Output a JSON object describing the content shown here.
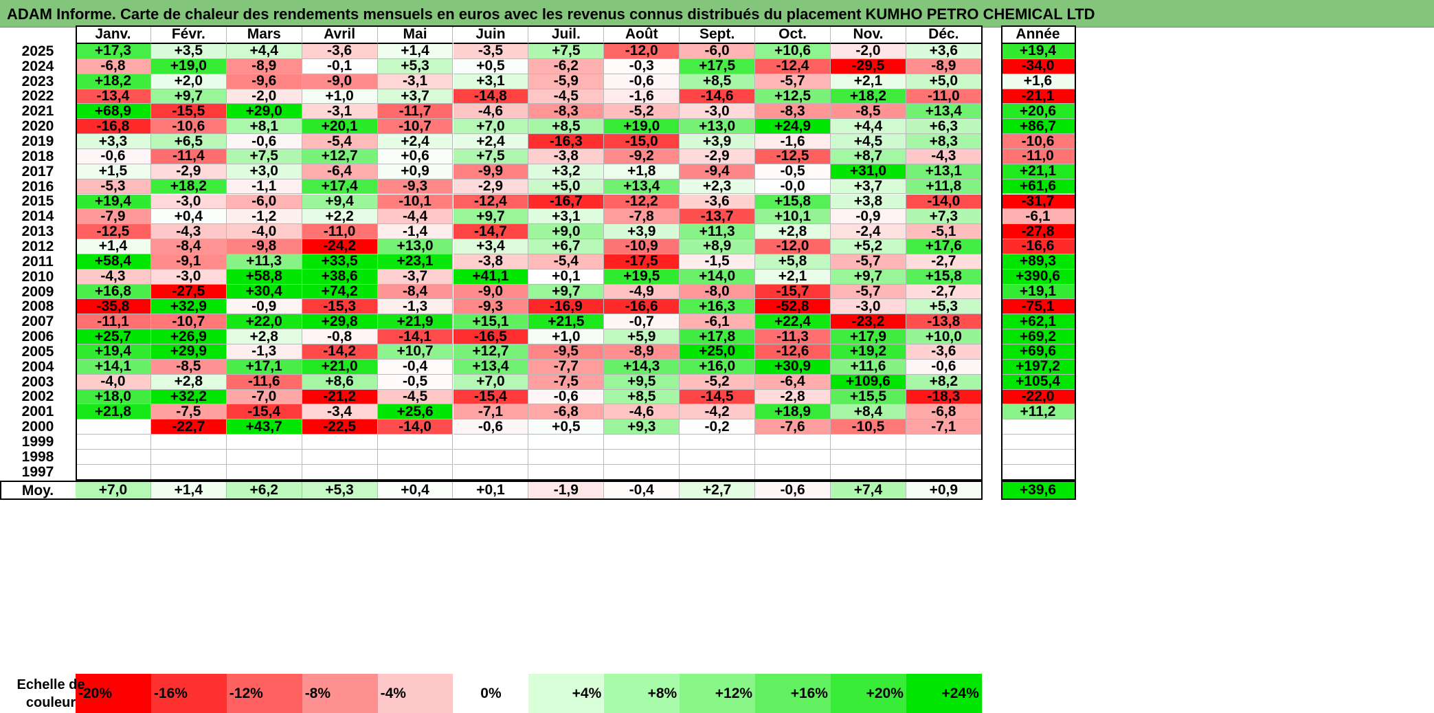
{
  "title": "ADAM Informe. Carte de chaleur des rendements mensuels en euros avec les revenus connus distribués du placement KUMHO PETRO CHEMICAL LTD",
  "chart_data": {
    "type": "heatmap",
    "title": "ADAM Informe. Carte de chaleur des rendements mensuels en euros avec les revenus connus distribués du placement KUMHO PETRO CHEMICAL LTD",
    "columns": [
      "Janv.",
      "Févr.",
      "Mars",
      "Avril",
      "Mai",
      "Juin",
      "Juil.",
      "Août",
      "Sept.",
      "Oct.",
      "Nov.",
      "Déc."
    ],
    "year_column_label": "Année",
    "average_row_label": "Moy.",
    "rows": [
      {
        "year": "2025",
        "values": [
          "+17,3",
          "+3,5",
          "+4,4",
          "-3,6",
          "+1,4",
          "-3,5",
          "+7,5",
          "-12,0",
          "-6,0",
          "+10,6",
          "-2,0",
          "+3,6"
        ],
        "annual": "+19,4"
      },
      {
        "year": "2024",
        "values": [
          "-6,8",
          "+19,0",
          "-8,9",
          "-0,1",
          "+5,3",
          "+0,5",
          "-6,2",
          "-0,3",
          "+17,5",
          "-12,4",
          "-29,5",
          "-8,9"
        ],
        "annual": "-34,0"
      },
      {
        "year": "2023",
        "values": [
          "+18,2",
          "+2,0",
          "-9,6",
          "-9,0",
          "-3,1",
          "+3,1",
          "-5,9",
          "-0,6",
          "+8,5",
          "-5,7",
          "+2,1",
          "+5,0"
        ],
        "annual": "+1,6"
      },
      {
        "year": "2022",
        "values": [
          "-13,4",
          "+9,7",
          "-2,0",
          "+1,0",
          "+3,7",
          "-14,8",
          "-4,5",
          "-1,6",
          "-14,6",
          "+12,5",
          "+18,2",
          "-11,0"
        ],
        "annual": "-21,1"
      },
      {
        "year": "2021",
        "values": [
          "+68,9",
          "-15,5",
          "+29,0",
          "-3,1",
          "-11,7",
          "-4,6",
          "-8,3",
          "-5,2",
          "-3,0",
          "-8,3",
          "-8,5",
          "+13,4"
        ],
        "annual": "+20,6"
      },
      {
        "year": "2020",
        "values": [
          "-16,8",
          "-10,6",
          "+8,1",
          "+20,1",
          "-10,7",
          "+7,0",
          "+8,5",
          "+19,0",
          "+13,0",
          "+24,9",
          "+4,4",
          "+6,3"
        ],
        "annual": "+86,7"
      },
      {
        "year": "2019",
        "values": [
          "+3,3",
          "+6,5",
          "-0,6",
          "-5,4",
          "+2,4",
          "+2,4",
          "-16,3",
          "-15,0",
          "+3,9",
          "-1,6",
          "+4,5",
          "+8,3"
        ],
        "annual": "-10,6"
      },
      {
        "year": "2018",
        "values": [
          "-0,6",
          "-11,4",
          "+7,5",
          "+12,7",
          "+0,6",
          "+7,5",
          "-3,8",
          "-9,2",
          "-2,9",
          "-12,5",
          "+8,7",
          "-4,3"
        ],
        "annual": "-11,0"
      },
      {
        "year": "2017",
        "values": [
          "+1,5",
          "-2,9",
          "+3,0",
          "-6,4",
          "+0,9",
          "-9,9",
          "+3,2",
          "+1,8",
          "-9,4",
          "-0,5",
          "+31,0",
          "+13,1"
        ],
        "annual": "+21,1"
      },
      {
        "year": "2016",
        "values": [
          "-5,3",
          "+18,2",
          "-1,1",
          "+17,4",
          "-9,3",
          "-2,9",
          "+5,0",
          "+13,4",
          "+2,3",
          "-0,0",
          "+3,7",
          "+11,8"
        ],
        "annual": "+61,6"
      },
      {
        "year": "2015",
        "values": [
          "+19,4",
          "-3,0",
          "-6,0",
          "+9,4",
          "-10,1",
          "-12,4",
          "-16,7",
          "-12,2",
          "-3,6",
          "+15,8",
          "+3,8",
          "-14,0"
        ],
        "annual": "-31,7"
      },
      {
        "year": "2014",
        "values": [
          "-7,9",
          "+0,4",
          "-1,2",
          "+2,2",
          "-4,4",
          "+9,7",
          "+3,1",
          "-7,8",
          "-13,7",
          "+10,1",
          "-0,9",
          "+7,3"
        ],
        "annual": "-6,1"
      },
      {
        "year": "2013",
        "values": [
          "-12,5",
          "-4,3",
          "-4,0",
          "-11,0",
          "-1,4",
          "-14,7",
          "+9,0",
          "+3,9",
          "+11,3",
          "+2,8",
          "-2,4",
          "-5,1"
        ],
        "annual": "-27,8"
      },
      {
        "year": "2012",
        "values": [
          "+1,4",
          "-8,4",
          "-9,8",
          "-24,2",
          "+13,0",
          "+3,4",
          "+6,7",
          "-10,9",
          "+8,9",
          "-12,0",
          "+5,2",
          "+17,6"
        ],
        "annual": "-16,6"
      },
      {
        "year": "2011",
        "values": [
          "+58,4",
          "-9,1",
          "+11,3",
          "+33,5",
          "+23,1",
          "-3,8",
          "-5,4",
          "-17,5",
          "-1,5",
          "+5,8",
          "-5,7",
          "-2,7"
        ],
        "annual": "+89,3"
      },
      {
        "year": "2010",
        "values": [
          "-4,3",
          "-3,0",
          "+58,8",
          "+38,6",
          "-3,7",
          "+41,1",
          "+0,1",
          "+19,5",
          "+14,0",
          "+2,1",
          "+9,7",
          "+15,8"
        ],
        "annual": "+390,6"
      },
      {
        "year": "2009",
        "values": [
          "+16,8",
          "-27,5",
          "+30,4",
          "+74,2",
          "-8,4",
          "-9,0",
          "+9,7",
          "-4,9",
          "-8,0",
          "-15,7",
          "-5,7",
          "-2,7"
        ],
        "annual": "+19,1"
      },
      {
        "year": "2008",
        "values": [
          "-35,8",
          "+32,9",
          "-0,9",
          "-15,3",
          "-1,3",
          "-9,3",
          "-16,9",
          "-16,6",
          "+16,3",
          "-52,8",
          "-3,0",
          "+5,3"
        ],
        "annual": "-75,1"
      },
      {
        "year": "2007",
        "values": [
          "-11,1",
          "-10,7",
          "+22,0",
          "+29,8",
          "+21,9",
          "+15,1",
          "+21,5",
          "-0,7",
          "-6,1",
          "+22,4",
          "-23,2",
          "-13,8"
        ],
        "annual": "+62,1"
      },
      {
        "year": "2006",
        "values": [
          "+25,7",
          "+26,9",
          "+2,8",
          "-0,8",
          "-14,1",
          "-16,5",
          "+1,0",
          "+5,9",
          "+17,8",
          "-11,3",
          "+17,9",
          "+10,0"
        ],
        "annual": "+69,2"
      },
      {
        "year": "2005",
        "values": [
          "+19,4",
          "+29,9",
          "-1,3",
          "-14,2",
          "+10,7",
          "+12,7",
          "-9,5",
          "-8,9",
          "+25,0",
          "-12,6",
          "+19,2",
          "-3,6"
        ],
        "annual": "+69,6"
      },
      {
        "year": "2004",
        "values": [
          "+14,1",
          "-8,5",
          "+17,1",
          "+21,0",
          "-0,4",
          "+13,4",
          "-7,7",
          "+14,3",
          "+16,0",
          "+30,9",
          "+11,6",
          "-0,6"
        ],
        "annual": "+197,2"
      },
      {
        "year": "2003",
        "values": [
          "-4,0",
          "+2,8",
          "-11,6",
          "+8,6",
          "-0,5",
          "+7,0",
          "-7,5",
          "+9,5",
          "-5,2",
          "-6,4",
          "+109,6",
          "+8,2"
        ],
        "annual": "+105,4"
      },
      {
        "year": "2002",
        "values": [
          "+18,0",
          "+32,2",
          "-7,0",
          "-21,2",
          "-4,5",
          "-15,4",
          "-0,6",
          "+8,5",
          "-14,5",
          "-2,8",
          "+15,5",
          "-18,3"
        ],
        "annual": "-22,0"
      },
      {
        "year": "2001",
        "values": [
          "+21,8",
          "-7,5",
          "-15,4",
          "-3,4",
          "+25,6",
          "-7,1",
          "-6,8",
          "-4,6",
          "-4,2",
          "+18,9",
          "+8,4",
          "-6,8"
        ],
        "annual": "+11,2"
      },
      {
        "year": "2000",
        "values": [
          "",
          "-22,7",
          "+43,7",
          "-22,5",
          "-14,0",
          "-0,6",
          "+0,5",
          "+9,3",
          "-0,2",
          "-7,6",
          "-10,5",
          "-7,1"
        ],
        "annual": ""
      },
      {
        "year": "1999",
        "values": [
          "",
          "",
          "",
          "",
          "",
          "",
          "",
          "",
          "",
          "",
          "",
          ""
        ],
        "annual": ""
      },
      {
        "year": "1998",
        "values": [
          "",
          "",
          "",
          "",
          "",
          "",
          "",
          "",
          "",
          "",
          "",
          ""
        ],
        "annual": ""
      },
      {
        "year": "1997",
        "values": [
          "",
          "",
          "",
          "",
          "",
          "",
          "",
          "",
          "",
          "",
          "",
          ""
        ],
        "annual": ""
      }
    ],
    "averages": [
      "+7,0",
      "+1,4",
      "+6,2",
      "+5,3",
      "+0,4",
      "+0,1",
      "-1,9",
      "-0,4",
      "+2,7",
      "-0,6",
      "+7,4",
      "+0,9"
    ],
    "average_annual": "+39,6",
    "color_scale": {
      "label": "Echelle de couleur",
      "steps": [
        {
          "label": "-20%",
          "value": -20,
          "color": "#ff0000"
        },
        {
          "label": "-16%",
          "value": -16,
          "color": "#ff3030"
        },
        {
          "label": "-12%",
          "value": -12,
          "color": "#ff6060"
        },
        {
          "label": "-8%",
          "value": -8,
          "color": "#ff9090"
        },
        {
          "label": "-4%",
          "value": -4,
          "color": "#ffc8c8"
        },
        {
          "label": "0%",
          "value": 0,
          "color": "#ffffff"
        },
        {
          "label": "+4%",
          "value": 4,
          "color": "#d9ffd9"
        },
        {
          "label": "+8%",
          "value": 8,
          "color": "#a8fba8"
        },
        {
          "label": "+12%",
          "value": 12,
          "color": "#88f788"
        },
        {
          "label": "+16%",
          "value": 16,
          "color": "#60f060"
        },
        {
          "label": "+20%",
          "value": 20,
          "color": "#38ec38"
        },
        {
          "label": "+24%",
          "value": 24,
          "color": "#00e600"
        }
      ]
    }
  }
}
